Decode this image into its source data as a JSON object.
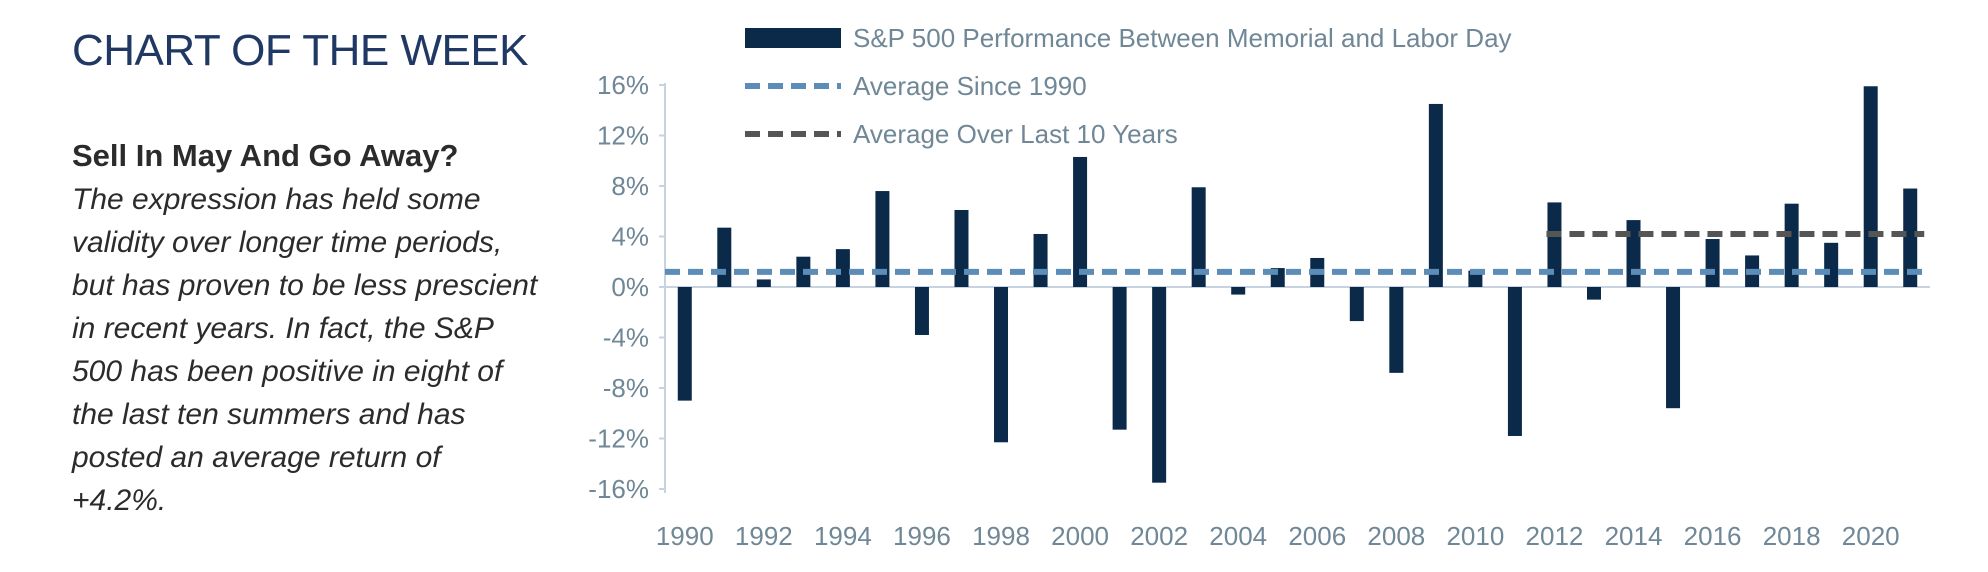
{
  "page": {
    "eyebrow": "CHART OF THE WEEK",
    "headline": "Sell In May And Go Away?",
    "body": "The expression has held some validity over longer time periods, but has proven to be less prescient in recent years. In fact, the S&P 500 has been positive in eight of the last ten summers and has posted an average return of +4.2%."
  },
  "colors": {
    "bar": "#0b2a4a",
    "avg_1990": "#5b8db8",
    "avg_10y": "#555555",
    "axis_text": "#6f8796",
    "title_text": "#1f3864",
    "zero_line": "#c7d3e0"
  },
  "chart_data": {
    "type": "bar",
    "title": "",
    "xlabel": "",
    "ylabel": "",
    "ylim": [
      -16,
      16
    ],
    "yticks": [
      16,
      12,
      8,
      4,
      0,
      -4,
      -8,
      -12,
      -16
    ],
    "ytick_labels": [
      "16%",
      "12%",
      "8%",
      "4%",
      "0%",
      "-4%",
      "-8%",
      "-12%",
      "-16%"
    ],
    "xtick_labels": [
      "1990",
      "1992",
      "1994",
      "1996",
      "1998",
      "2000",
      "2002",
      "2004",
      "2006",
      "2008",
      "2010",
      "2012",
      "2014",
      "2016",
      "2018",
      "2020"
    ],
    "grid": false,
    "legend_position": "top",
    "categories": [
      "1990",
      "1991",
      "1992",
      "1993",
      "1994",
      "1995",
      "1996",
      "1997",
      "1998",
      "1999",
      "2000",
      "2001",
      "2002",
      "2003",
      "2004",
      "2005",
      "2006",
      "2007",
      "2008",
      "2009",
      "2010",
      "2011",
      "2012",
      "2013",
      "2014",
      "2015",
      "2016",
      "2017",
      "2018",
      "2019",
      "2020",
      "2021"
    ],
    "series": [
      {
        "name": "S&P 500 Performance Between Memorial and Labor Day",
        "values": [
          -9.0,
          4.7,
          0.6,
          2.4,
          3.0,
          7.6,
          -3.8,
          6.1,
          -12.3,
          4.2,
          10.3,
          -11.3,
          -15.5,
          7.9,
          -0.6,
          1.5,
          2.3,
          -2.7,
          -6.8,
          14.5,
          1.3,
          -11.8,
          6.7,
          -1.0,
          5.3,
          -9.6,
          3.8,
          2.5,
          6.6,
          3.5,
          15.9,
          7.8
        ]
      }
    ],
    "reference_lines": [
      {
        "name": "Average Since 1990",
        "value": 1.2,
        "from": "1990",
        "to": "2021"
      },
      {
        "name": "Average Over Last 10 Years",
        "value": 4.2,
        "from": "2012",
        "to": "2021"
      }
    ]
  }
}
